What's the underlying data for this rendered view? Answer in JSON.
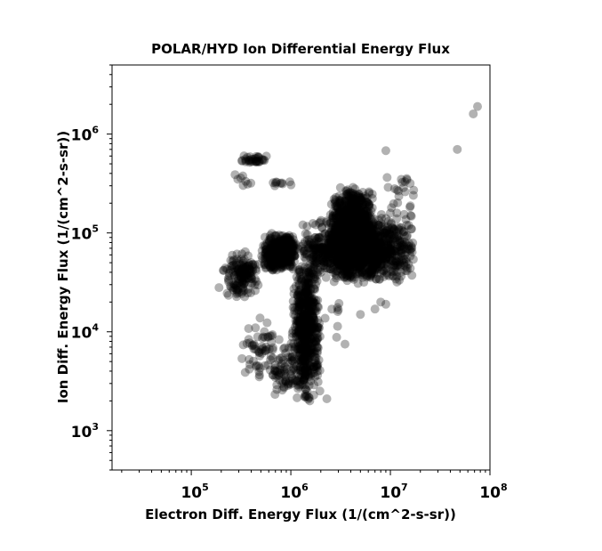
{
  "chart_data": {
    "type": "scatter",
    "title": "POLAR/HYD  Ion Differential Energy Flux",
    "xlabel": "Electron Diff. Energy Flux (1/(cm^2-s-sr))",
    "ylabel": "Ion Diff. Energy Flux (1/(cm^2-s-sr))",
    "x_scale": "log",
    "y_scale": "log",
    "xlim": [
      16000,
      100000000
    ],
    "ylim": [
      400,
      5000000
    ],
    "x_ticks": [
      {
        "value": 100000,
        "base": "10",
        "exp": "5"
      },
      {
        "value": 1000000,
        "base": "10",
        "exp": "6"
      },
      {
        "value": 10000000,
        "base": "10",
        "exp": "7"
      },
      {
        "value": 100000000,
        "base": "10",
        "exp": "8"
      }
    ],
    "y_ticks": [
      {
        "value": 1000,
        "base": "10",
        "exp": "3"
      },
      {
        "value": 10000,
        "base": "10",
        "exp": "4"
      },
      {
        "value": 100000,
        "base": "10",
        "exp": "5"
      },
      {
        "value": 1000000,
        "base": "10",
        "exp": "6"
      }
    ],
    "grid": false,
    "legend": "none",
    "marker_color": "#000000",
    "marker_opacity": 0.3,
    "clusters": [
      {
        "x": [
          1000000,
          2000000
        ],
        "y": [
          2000,
          60000
        ],
        "n": 600
      },
      {
        "x": [
          1200000,
          18000000
        ],
        "y": [
          30000,
          150000
        ],
        "n": 1400
      },
      {
        "x": [
          2500000,
          7000000
        ],
        "y": [
          80000,
          300000
        ],
        "n": 500
      },
      {
        "x": [
          500000,
          1200000
        ],
        "y": [
          40000,
          100000
        ],
        "n": 450
      },
      {
        "x": [
          200000,
          500000
        ],
        "y": [
          20000,
          70000
        ],
        "n": 160
      },
      {
        "x": [
          300000,
          650000
        ],
        "y": [
          480000,
          620000
        ],
        "n": 35
      },
      {
        "x": [
          250000,
          420000
        ],
        "y": [
          280000,
          400000
        ],
        "n": 8
      },
      {
        "x": [
          600000,
          1100000
        ],
        "y": [
          290000,
          340000
        ],
        "n": 10
      },
      {
        "x": [
          300000,
          900000
        ],
        "y": [
          3000,
          15000
        ],
        "n": 60
      },
      {
        "x": [
          600000,
          1300000
        ],
        "y": [
          2000,
          8000
        ],
        "n": 70
      },
      {
        "x": [
          8000000,
          19000000
        ],
        "y": [
          120000,
          450000
        ],
        "n": 25
      },
      {
        "x": [
          2000000,
          4000000
        ],
        "y": [
          7000,
          25000
        ],
        "n": 8
      }
    ],
    "points": [
      {
        "x": 75000000,
        "y": 1900000
      },
      {
        "x": 68000000,
        "y": 1600000
      },
      {
        "x": 47000000,
        "y": 700000
      },
      {
        "x": 9000000,
        "y": 680000
      },
      {
        "x": 1550000,
        "y": 2000
      },
      {
        "x": 2300000,
        "y": 2100
      },
      {
        "x": 8000000,
        "y": 20000
      },
      {
        "x": 9000000,
        "y": 19000
      },
      {
        "x": 5000000,
        "y": 15000
      },
      {
        "x": 7000000,
        "y": 17000
      },
      {
        "x": 3500000,
        "y": 7500
      },
      {
        "x": 16000000,
        "y": 150000
      },
      {
        "x": 17000000,
        "y": 240000
      },
      {
        "x": 14000000,
        "y": 330000
      },
      {
        "x": 210000,
        "y": 42000
      },
      {
        "x": 190000,
        "y": 28000
      }
    ]
  }
}
